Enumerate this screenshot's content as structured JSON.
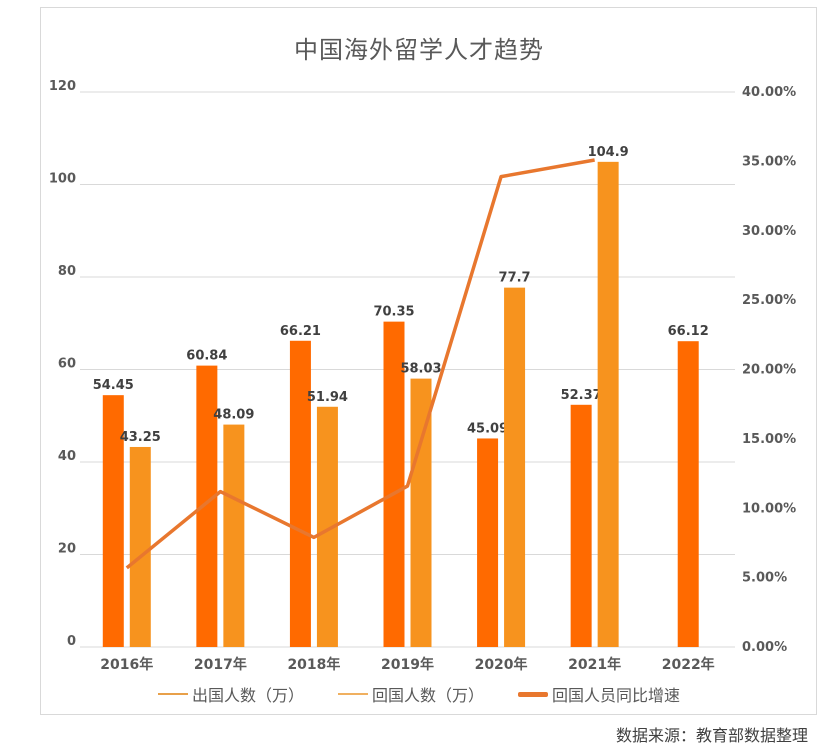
{
  "title": "中国海外留学人才趋势",
  "source_note": "数据来源：教育部数据整理",
  "colors": {
    "outbound": "#ff6a00",
    "returning": "#f7931e",
    "growth_line": "#e8772e",
    "grid": "#d9d9d9",
    "axis_text": "#595959",
    "label_text": "#404040"
  },
  "legend": [
    {
      "label": "出国人数（万）",
      "style": "thin",
      "color": "#e8a04a"
    },
    {
      "label": "回国人数（万）",
      "style": "thin",
      "color": "#f0b060"
    },
    {
      "label": "回国人员同比增速",
      "style": "thick",
      "color": "#e8772e"
    }
  ],
  "chart_data": {
    "type": "bar",
    "title": "中国海外留学人才趋势",
    "categories": [
      "2016年",
      "2017年",
      "2018年",
      "2019年",
      "2020年",
      "2021年",
      "2022年"
    ],
    "series": [
      {
        "name": "出国人数（万）",
        "type": "bar",
        "axis": "left",
        "values": [
          54.45,
          60.84,
          66.21,
          70.35,
          45.09,
          52.37,
          66.12
        ]
      },
      {
        "name": "回国人数（万）",
        "type": "bar",
        "axis": "left",
        "values": [
          43.25,
          48.09,
          51.94,
          58.03,
          77.7,
          104.9,
          null
        ]
      },
      {
        "name": "回国人员同比增速",
        "type": "line",
        "axis": "right",
        "values": [
          5.7,
          11.2,
          7.9,
          11.6,
          33.9,
          35.1,
          null
        ],
        "unit": "%"
      }
    ],
    "left_axis": {
      "min": 0,
      "max": 120,
      "ticks": [
        0,
        20,
        40,
        60,
        80,
        100,
        120
      ]
    },
    "right_axis": {
      "min": 0,
      "max": 40,
      "ticks": [
        "0.00%",
        "5.00%",
        "10.00%",
        "15.00%",
        "20.00%",
        "25.00%",
        "30.00%",
        "35.00%",
        "40.00%"
      ]
    },
    "xlabel": "",
    "ylabel": "",
    "grid": true,
    "legend_position": "bottom",
    "data_labels": [
      "54.45",
      "43.25",
      "60.84",
      "48.09",
      "66.21",
      "51.94",
      "70.35",
      "58.03",
      "45.09",
      "77.7",
      "52.37",
      "104.9",
      "66.12"
    ]
  }
}
